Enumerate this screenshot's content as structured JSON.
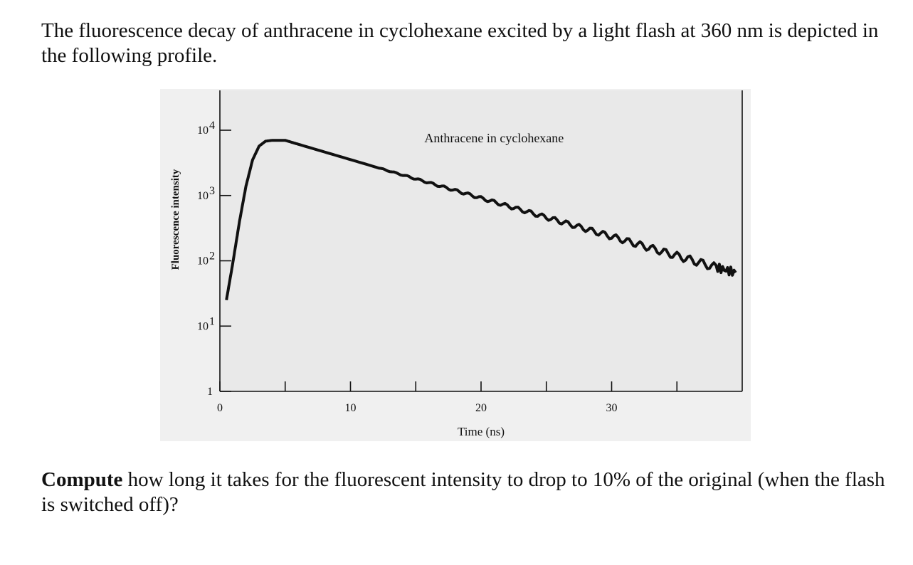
{
  "problem": {
    "intro": "The fluorescence decay of anthracene in cyclohexane excited by a light flash at 360 nm is depicted in the following profile.",
    "question_bold": "Compute",
    "question_rest": " how long it takes for the fluorescent intensity to drop to 10% of the original (when the flash is switched off)?"
  },
  "chart_data": {
    "type": "line",
    "title": "",
    "annotation": "Anthracene in cyclohexane",
    "xlabel": "Time (ns)",
    "ylabel": "Fluorescence intensity",
    "x_scale": "linear",
    "y_scale": "log",
    "xlim": [
      0,
      40
    ],
    "ylim": [
      1,
      10000
    ],
    "x_ticks": [
      0,
      5,
      10,
      15,
      20,
      25,
      30,
      35
    ],
    "x_tick_labels": [
      "0",
      "",
      "10",
      "",
      "20",
      "",
      "30",
      ""
    ],
    "y_ticks": [
      1,
      10,
      100,
      1000,
      10000
    ],
    "y_tick_labels": [
      {
        "base": "1",
        "exp": ""
      },
      {
        "base": "10",
        "exp": "1"
      },
      {
        "base": "10",
        "exp": "2"
      },
      {
        "base": "10",
        "exp": "3"
      },
      {
        "base": "10",
        "exp": "4"
      }
    ],
    "grid": false,
    "background": "#ececec",
    "line_color": "#111111",
    "series": [
      {
        "x": [
          0.5,
          1.0,
          1.5,
          2.0,
          2.5,
          3.0,
          3.5,
          4.0,
          5.0,
          6.0,
          8.0,
          10.0,
          12.0,
          14.0,
          16.0,
          18.0,
          20.0,
          22.0,
          24.0,
          26.0,
          28.0,
          30.0,
          32.0,
          34.0,
          36.0,
          38.0,
          39.5
        ],
        "y": [
          25,
          95,
          400,
          1400,
          3500,
          5700,
          6800,
          7000,
          7000,
          6100,
          4650,
          3550,
          2700,
          2060,
          1570,
          1200,
          912,
          695,
          530,
          404,
          308,
          235,
          179,
          136,
          104,
          79,
          66
        ]
      }
    ]
  }
}
